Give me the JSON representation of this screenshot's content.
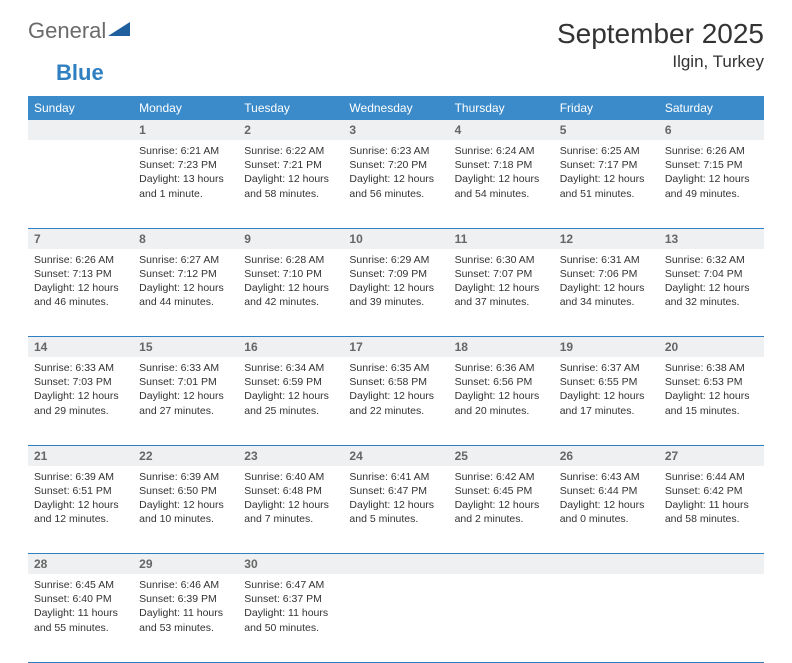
{
  "logo": {
    "text1": "General",
    "text2": "Blue"
  },
  "title": "September 2025",
  "location": "Ilgin, Turkey",
  "colors": {
    "header_bg": "#3b8bca",
    "header_text": "#ffffff",
    "daynum_bg": "#eef0f1",
    "border": "#2f7fc1",
    "logo_gray": "#6a6a6a",
    "logo_blue": "#2f7fc1"
  },
  "day_headers": [
    "Sunday",
    "Monday",
    "Tuesday",
    "Wednesday",
    "Thursday",
    "Friday",
    "Saturday"
  ],
  "weeks": [
    {
      "nums": [
        "",
        "1",
        "2",
        "3",
        "4",
        "5",
        "6"
      ],
      "cells": [
        null,
        {
          "sunrise": "Sunrise: 6:21 AM",
          "sunset": "Sunset: 7:23 PM",
          "daylight": "Daylight: 13 hours and 1 minute."
        },
        {
          "sunrise": "Sunrise: 6:22 AM",
          "sunset": "Sunset: 7:21 PM",
          "daylight": "Daylight: 12 hours and 58 minutes."
        },
        {
          "sunrise": "Sunrise: 6:23 AM",
          "sunset": "Sunset: 7:20 PM",
          "daylight": "Daylight: 12 hours and 56 minutes."
        },
        {
          "sunrise": "Sunrise: 6:24 AM",
          "sunset": "Sunset: 7:18 PM",
          "daylight": "Daylight: 12 hours and 54 minutes."
        },
        {
          "sunrise": "Sunrise: 6:25 AM",
          "sunset": "Sunset: 7:17 PM",
          "daylight": "Daylight: 12 hours and 51 minutes."
        },
        {
          "sunrise": "Sunrise: 6:26 AM",
          "sunset": "Sunset: 7:15 PM",
          "daylight": "Daylight: 12 hours and 49 minutes."
        }
      ]
    },
    {
      "nums": [
        "7",
        "8",
        "9",
        "10",
        "11",
        "12",
        "13"
      ],
      "cells": [
        {
          "sunrise": "Sunrise: 6:26 AM",
          "sunset": "Sunset: 7:13 PM",
          "daylight": "Daylight: 12 hours and 46 minutes."
        },
        {
          "sunrise": "Sunrise: 6:27 AM",
          "sunset": "Sunset: 7:12 PM",
          "daylight": "Daylight: 12 hours and 44 minutes."
        },
        {
          "sunrise": "Sunrise: 6:28 AM",
          "sunset": "Sunset: 7:10 PM",
          "daylight": "Daylight: 12 hours and 42 minutes."
        },
        {
          "sunrise": "Sunrise: 6:29 AM",
          "sunset": "Sunset: 7:09 PM",
          "daylight": "Daylight: 12 hours and 39 minutes."
        },
        {
          "sunrise": "Sunrise: 6:30 AM",
          "sunset": "Sunset: 7:07 PM",
          "daylight": "Daylight: 12 hours and 37 minutes."
        },
        {
          "sunrise": "Sunrise: 6:31 AM",
          "sunset": "Sunset: 7:06 PM",
          "daylight": "Daylight: 12 hours and 34 minutes."
        },
        {
          "sunrise": "Sunrise: 6:32 AM",
          "sunset": "Sunset: 7:04 PM",
          "daylight": "Daylight: 12 hours and 32 minutes."
        }
      ]
    },
    {
      "nums": [
        "14",
        "15",
        "16",
        "17",
        "18",
        "19",
        "20"
      ],
      "cells": [
        {
          "sunrise": "Sunrise: 6:33 AM",
          "sunset": "Sunset: 7:03 PM",
          "daylight": "Daylight: 12 hours and 29 minutes."
        },
        {
          "sunrise": "Sunrise: 6:33 AM",
          "sunset": "Sunset: 7:01 PM",
          "daylight": "Daylight: 12 hours and 27 minutes."
        },
        {
          "sunrise": "Sunrise: 6:34 AM",
          "sunset": "Sunset: 6:59 PM",
          "daylight": "Daylight: 12 hours and 25 minutes."
        },
        {
          "sunrise": "Sunrise: 6:35 AM",
          "sunset": "Sunset: 6:58 PM",
          "daylight": "Daylight: 12 hours and 22 minutes."
        },
        {
          "sunrise": "Sunrise: 6:36 AM",
          "sunset": "Sunset: 6:56 PM",
          "daylight": "Daylight: 12 hours and 20 minutes."
        },
        {
          "sunrise": "Sunrise: 6:37 AM",
          "sunset": "Sunset: 6:55 PM",
          "daylight": "Daylight: 12 hours and 17 minutes."
        },
        {
          "sunrise": "Sunrise: 6:38 AM",
          "sunset": "Sunset: 6:53 PM",
          "daylight": "Daylight: 12 hours and 15 minutes."
        }
      ]
    },
    {
      "nums": [
        "21",
        "22",
        "23",
        "24",
        "25",
        "26",
        "27"
      ],
      "cells": [
        {
          "sunrise": "Sunrise: 6:39 AM",
          "sunset": "Sunset: 6:51 PM",
          "daylight": "Daylight: 12 hours and 12 minutes."
        },
        {
          "sunrise": "Sunrise: 6:39 AM",
          "sunset": "Sunset: 6:50 PM",
          "daylight": "Daylight: 12 hours and 10 minutes."
        },
        {
          "sunrise": "Sunrise: 6:40 AM",
          "sunset": "Sunset: 6:48 PM",
          "daylight": "Daylight: 12 hours and 7 minutes."
        },
        {
          "sunrise": "Sunrise: 6:41 AM",
          "sunset": "Sunset: 6:47 PM",
          "daylight": "Daylight: 12 hours and 5 minutes."
        },
        {
          "sunrise": "Sunrise: 6:42 AM",
          "sunset": "Sunset: 6:45 PM",
          "daylight": "Daylight: 12 hours and 2 minutes."
        },
        {
          "sunrise": "Sunrise: 6:43 AM",
          "sunset": "Sunset: 6:44 PM",
          "daylight": "Daylight: 12 hours and 0 minutes."
        },
        {
          "sunrise": "Sunrise: 6:44 AM",
          "sunset": "Sunset: 6:42 PM",
          "daylight": "Daylight: 11 hours and 58 minutes."
        }
      ]
    },
    {
      "nums": [
        "28",
        "29",
        "30",
        "",
        "",
        "",
        ""
      ],
      "cells": [
        {
          "sunrise": "Sunrise: 6:45 AM",
          "sunset": "Sunset: 6:40 PM",
          "daylight": "Daylight: 11 hours and 55 minutes."
        },
        {
          "sunrise": "Sunrise: 6:46 AM",
          "sunset": "Sunset: 6:39 PM",
          "daylight": "Daylight: 11 hours and 53 minutes."
        },
        {
          "sunrise": "Sunrise: 6:47 AM",
          "sunset": "Sunset: 6:37 PM",
          "daylight": "Daylight: 11 hours and 50 minutes."
        },
        null,
        null,
        null,
        null
      ]
    }
  ]
}
